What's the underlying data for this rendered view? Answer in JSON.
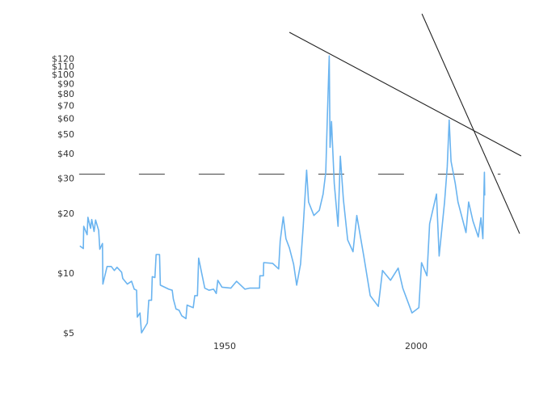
{
  "chart_data": {
    "type": "line",
    "title": "",
    "xlabel": "",
    "ylabel": "",
    "y_scale": "log",
    "xlim": [
      1910,
      2028
    ],
    "ylim": [
      5,
      125
    ],
    "grid": false,
    "x_ticks": [
      {
        "value": 1950,
        "label": "1950"
      },
      {
        "value": 2000,
        "label": "2000"
      }
    ],
    "y_ticks": [
      {
        "value": 5,
        "label": "$5"
      },
      {
        "value": 10,
        "label": "$10"
      },
      {
        "value": 20,
        "label": "$20"
      },
      {
        "value": 30,
        "label": "$30"
      },
      {
        "value": 40,
        "label": "$40"
      },
      {
        "value": 50,
        "label": "$50"
      },
      {
        "value": 60,
        "label": "$60"
      },
      {
        "value": 70,
        "label": "$70"
      },
      {
        "value": 80,
        "label": "$80"
      },
      {
        "value": 90,
        "label": "$90"
      },
      {
        "value": 100,
        "label": "$100"
      },
      {
        "value": 110,
        "label": "$110"
      },
      {
        "value": 120,
        "label": "$120"
      }
    ],
    "series": [
      {
        "color": "#6ab4f0",
        "points": [
          [
            1912.2,
            13.7
          ],
          [
            1913.1,
            13.3
          ],
          [
            1913.2,
            17.2
          ],
          [
            1914.1,
            15.6
          ],
          [
            1914.3,
            19.1
          ],
          [
            1915.0,
            16.8
          ],
          [
            1915.3,
            18.6
          ],
          [
            1915.9,
            16.2
          ],
          [
            1916.3,
            18.5
          ],
          [
            1917.1,
            16.4
          ],
          [
            1917.4,
            13.2
          ],
          [
            1918.1,
            14.1
          ],
          [
            1918.2,
            8.8
          ],
          [
            1919.3,
            10.8
          ],
          [
            1920.4,
            10.8
          ],
          [
            1921.2,
            10.3
          ],
          [
            1921.9,
            10.7
          ],
          [
            1923.1,
            10.1
          ],
          [
            1923.4,
            9.4
          ],
          [
            1924.6,
            8.8
          ],
          [
            1925.7,
            9.1
          ],
          [
            1926.4,
            8.3
          ],
          [
            1927.0,
            8.2
          ],
          [
            1927.2,
            6.0
          ],
          [
            1927.9,
            6.3
          ],
          [
            1928.3,
            5.0
          ],
          [
            1929.8,
            5.6
          ],
          [
            1930.2,
            7.3
          ],
          [
            1930.9,
            7.3
          ],
          [
            1931.1,
            9.6
          ],
          [
            1931.8,
            9.5
          ],
          [
            1932.1,
            12.4
          ],
          [
            1933.0,
            12.4
          ],
          [
            1933.2,
            8.7
          ],
          [
            1935.4,
            8.3
          ],
          [
            1936.3,
            8.2
          ],
          [
            1936.6,
            7.4
          ],
          [
            1937.3,
            6.6
          ],
          [
            1938.1,
            6.5
          ],
          [
            1938.8,
            6.1
          ],
          [
            1939.9,
            5.9
          ],
          [
            1940.2,
            6.9
          ],
          [
            1941.8,
            6.7
          ],
          [
            1942.2,
            7.7
          ],
          [
            1942.9,
            7.7
          ],
          [
            1943.2,
            11.9
          ],
          [
            1944.1,
            9.8
          ],
          [
            1944.8,
            8.4
          ],
          [
            1945.9,
            8.2
          ],
          [
            1947.1,
            8.3
          ],
          [
            1947.8,
            7.9
          ],
          [
            1948.2,
            9.2
          ],
          [
            1949.3,
            8.5
          ],
          [
            1951.6,
            8.4
          ],
          [
            1953.1,
            9.1
          ],
          [
            1955.3,
            8.3
          ],
          [
            1956.5,
            8.4
          ],
          [
            1959.1,
            8.4
          ],
          [
            1959.2,
            9.7
          ],
          [
            1960.1,
            9.7
          ],
          [
            1960.2,
            11.3
          ],
          [
            1962.5,
            11.2
          ],
          [
            1964.1,
            10.5
          ],
          [
            1964.5,
            14.5
          ],
          [
            1965.3,
            19.2
          ],
          [
            1966.0,
            14.9
          ],
          [
            1966.9,
            13.4
          ],
          [
            1968.0,
            11.1
          ],
          [
            1968.8,
            8.7
          ],
          [
            1969.8,
            11.1
          ],
          [
            1970.5,
            17.2
          ],
          [
            1971.4,
            33
          ],
          [
            1971.9,
            22.8
          ],
          [
            1973.3,
            19.5
          ],
          [
            1974.7,
            20.7
          ],
          [
            1975.7,
            25
          ],
          [
            1976.4,
            32.2
          ],
          [
            1976.8,
            60
          ],
          [
            1977.3,
            124
          ],
          [
            1977.5,
            43
          ],
          [
            1977.9,
            58
          ],
          [
            1978.6,
            28.3
          ],
          [
            1979.6,
            17.2
          ],
          [
            1980.2,
            38.8
          ],
          [
            1981.0,
            23.5
          ],
          [
            1982.1,
            14.7
          ],
          [
            1983.5,
            12.8
          ],
          [
            1984.5,
            19.5
          ],
          [
            1986.3,
            12.2
          ],
          [
            1988.0,
            7.7
          ],
          [
            1990.1,
            6.8
          ],
          [
            1991.2,
            10.3
          ],
          [
            1993.3,
            9.2
          ],
          [
            1995.3,
            10.6
          ],
          [
            1996.5,
            8.4
          ],
          [
            1998.9,
            6.3
          ],
          [
            2000.7,
            6.7
          ],
          [
            2001.4,
            11.3
          ],
          [
            2002.8,
            9.7
          ],
          [
            2003.5,
            17.7
          ],
          [
            2005.3,
            25
          ],
          [
            2006.0,
            12.2
          ],
          [
            2007.4,
            22.8
          ],
          [
            2008.1,
            34.2
          ],
          [
            2008.6,
            59
          ],
          [
            2009.1,
            36.6
          ],
          [
            2010.2,
            28.3
          ],
          [
            2010.9,
            22.8
          ],
          [
            2013.0,
            16.0
          ],
          [
            2013.7,
            22.8
          ],
          [
            2014.8,
            18.3
          ],
          [
            2016.2,
            15.2
          ],
          [
            2016.9,
            19.0
          ],
          [
            2017.4,
            14.9
          ],
          [
            2017.8,
            32.2
          ],
          [
            2017.9,
            24.6
          ]
        ]
      }
    ],
    "annotations": {
      "color": "#222222",
      "trend_lines": [
        {
          "from": [
            1966.9,
            163
          ],
          "to": [
            2027.4,
            38.9
          ]
        },
        {
          "from": [
            2001.5,
            202
          ],
          "to": [
            2027.0,
            15.8
          ]
        }
      ],
      "dashed_level": {
        "value": 31.5,
        "from": 1912,
        "to": 2022
      }
    }
  }
}
